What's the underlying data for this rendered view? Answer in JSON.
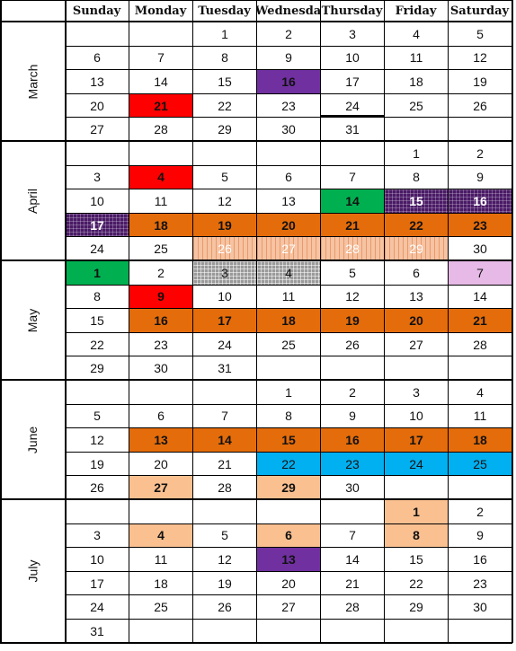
{
  "days": [
    "Sunday",
    "Monday",
    "Tuesday",
    "Wednesda",
    "Thursday",
    "Friday",
    "Saturday"
  ],
  "colors": {
    "purple": "#7030a0",
    "red": "#ff0000",
    "green": "#00b050",
    "orange": "#e46c0a",
    "blue": "#00b0f0",
    "peach": "#fac090",
    "lavender": "#e6b9e6",
    "dark_purple_grid": "#4a1a66",
    "peach_stripe": "#f6c3a3",
    "gray_check": "#9a9a9a"
  },
  "months": [
    {
      "name": "March",
      "weeks": [
        [
          "",
          "",
          "1",
          "2",
          "3",
          "4",
          "5"
        ],
        [
          "6",
          "7",
          "8",
          "9",
          "10",
          "11",
          "12"
        ],
        [
          "13",
          "14",
          "15",
          "16",
          "17",
          "18",
          "19"
        ],
        [
          "20",
          "21",
          "22",
          "23",
          "24",
          "25",
          "26"
        ],
        [
          "27",
          "28",
          "29",
          "30",
          "31",
          "",
          ""
        ]
      ],
      "highlights": [
        {
          "week": 2,
          "day": 3,
          "fill": "purple",
          "bold": true
        },
        {
          "week": 3,
          "day": 1,
          "fill": "red",
          "bold": true
        },
        {
          "week": 3,
          "day": 4,
          "underline": true
        }
      ]
    },
    {
      "name": "April",
      "weeks": [
        [
          "",
          "",
          "",
          "",
          "",
          "1",
          "2"
        ],
        [
          "3",
          "4",
          "5",
          "6",
          "7",
          "8",
          "9"
        ],
        [
          "10",
          "11",
          "12",
          "13",
          "14",
          "15",
          "16"
        ],
        [
          "17",
          "18",
          "19",
          "20",
          "21",
          "22",
          "23"
        ],
        [
          "24",
          "25",
          "26",
          "27",
          "28",
          "29",
          "30"
        ]
      ],
      "highlights": [
        {
          "week": 1,
          "day": 1,
          "fill": "red",
          "bold": true
        },
        {
          "week": 2,
          "day": 4,
          "fill": "green",
          "bold": true
        },
        {
          "week": 2,
          "day": 5,
          "fill": "pattern-grid",
          "bold": true,
          "white": true
        },
        {
          "week": 2,
          "day": 6,
          "fill": "pattern-grid",
          "bold": true,
          "white": true
        },
        {
          "week": 3,
          "day": 0,
          "fill": "pattern-grid",
          "bold": true,
          "white": true
        },
        {
          "week": 3,
          "day": 1,
          "fill": "orange",
          "bold": true
        },
        {
          "week": 3,
          "day": 2,
          "fill": "orange",
          "bold": true
        },
        {
          "week": 3,
          "day": 3,
          "fill": "orange",
          "bold": true
        },
        {
          "week": 3,
          "day": 4,
          "fill": "orange",
          "bold": true
        },
        {
          "week": 3,
          "day": 5,
          "fill": "orange",
          "bold": true
        },
        {
          "week": 3,
          "day": 6,
          "fill": "orange",
          "bold": true
        },
        {
          "week": 4,
          "day": 2,
          "fill": "pattern-stripe",
          "white": true
        },
        {
          "week": 4,
          "day": 3,
          "fill": "pattern-stripe",
          "white": true
        },
        {
          "week": 4,
          "day": 4,
          "fill": "pattern-stripe",
          "white": true
        },
        {
          "week": 4,
          "day": 5,
          "fill": "pattern-stripe",
          "white": true
        }
      ]
    },
    {
      "name": "May",
      "weeks": [
        [
          "1",
          "2",
          "3",
          "4",
          "5",
          "6",
          "7"
        ],
        [
          "8",
          "9",
          "10",
          "11",
          "12",
          "13",
          "14"
        ],
        [
          "15",
          "16",
          "17",
          "18",
          "19",
          "20",
          "21"
        ],
        [
          "22",
          "23",
          "24",
          "25",
          "26",
          "27",
          "28"
        ],
        [
          "29",
          "30",
          "31",
          "",
          "",
          "",
          ""
        ]
      ],
      "highlights": [
        {
          "week": 0,
          "day": 0,
          "fill": "green",
          "bold": true
        },
        {
          "week": 0,
          "day": 2,
          "fill": "pattern-check"
        },
        {
          "week": 0,
          "day": 3,
          "fill": "pattern-check"
        },
        {
          "week": 0,
          "day": 6,
          "fill": "lavender"
        },
        {
          "week": 1,
          "day": 1,
          "fill": "red",
          "bold": true
        },
        {
          "week": 2,
          "day": 1,
          "fill": "orange",
          "bold": true
        },
        {
          "week": 2,
          "day": 2,
          "fill": "orange",
          "bold": true
        },
        {
          "week": 2,
          "day": 3,
          "fill": "orange",
          "bold": true
        },
        {
          "week": 2,
          "day": 4,
          "fill": "orange",
          "bold": true
        },
        {
          "week": 2,
          "day": 5,
          "fill": "orange",
          "bold": true
        },
        {
          "week": 2,
          "day": 6,
          "fill": "orange",
          "bold": true
        }
      ]
    },
    {
      "name": "June",
      "weeks": [
        [
          "",
          "",
          "",
          "1",
          "2",
          "3",
          "4"
        ],
        [
          "5",
          "6",
          "7",
          "8",
          "9",
          "10",
          "11"
        ],
        [
          "12",
          "13",
          "14",
          "15",
          "16",
          "17",
          "18"
        ],
        [
          "19",
          "20",
          "21",
          "22",
          "23",
          "24",
          "25"
        ],
        [
          "26",
          "27",
          "28",
          "29",
          "30",
          "",
          ""
        ]
      ],
      "highlights": [
        {
          "week": 2,
          "day": 1,
          "fill": "orange",
          "bold": true
        },
        {
          "week": 2,
          "day": 2,
          "fill": "orange",
          "bold": true
        },
        {
          "week": 2,
          "day": 3,
          "fill": "orange",
          "bold": true
        },
        {
          "week": 2,
          "day": 4,
          "fill": "orange",
          "bold": true
        },
        {
          "week": 2,
          "day": 5,
          "fill": "orange",
          "bold": true
        },
        {
          "week": 2,
          "day": 6,
          "fill": "orange",
          "bold": true
        },
        {
          "week": 3,
          "day": 3,
          "fill": "blue"
        },
        {
          "week": 3,
          "day": 4,
          "fill": "blue"
        },
        {
          "week": 3,
          "day": 5,
          "fill": "blue"
        },
        {
          "week": 3,
          "day": 6,
          "fill": "blue"
        },
        {
          "week": 4,
          "day": 1,
          "fill": "peach",
          "bold": true
        },
        {
          "week": 4,
          "day": 3,
          "fill": "peach",
          "bold": true
        }
      ]
    },
    {
      "name": "July",
      "weeks": [
        [
          "",
          "",
          "",
          "",
          "",
          "1",
          "2"
        ],
        [
          "3",
          "4",
          "5",
          "6",
          "7",
          "8",
          "9"
        ],
        [
          "10",
          "11",
          "12",
          "13",
          "14",
          "15",
          "16"
        ],
        [
          "17",
          "18",
          "19",
          "20",
          "21",
          "22",
          "23"
        ],
        [
          "24",
          "25",
          "26",
          "27",
          "28",
          "29",
          "30"
        ],
        [
          "31",
          "",
          "",
          "",
          "",
          "",
          ""
        ]
      ],
      "highlights": [
        {
          "week": 0,
          "day": 5,
          "fill": "peach",
          "bold": true
        },
        {
          "week": 1,
          "day": 1,
          "fill": "peach",
          "bold": true
        },
        {
          "week": 1,
          "day": 3,
          "fill": "peach",
          "bold": true
        },
        {
          "week": 1,
          "day": 5,
          "fill": "peach",
          "bold": true
        },
        {
          "week": 2,
          "day": 3,
          "fill": "purple",
          "bold": true
        }
      ]
    }
  ]
}
